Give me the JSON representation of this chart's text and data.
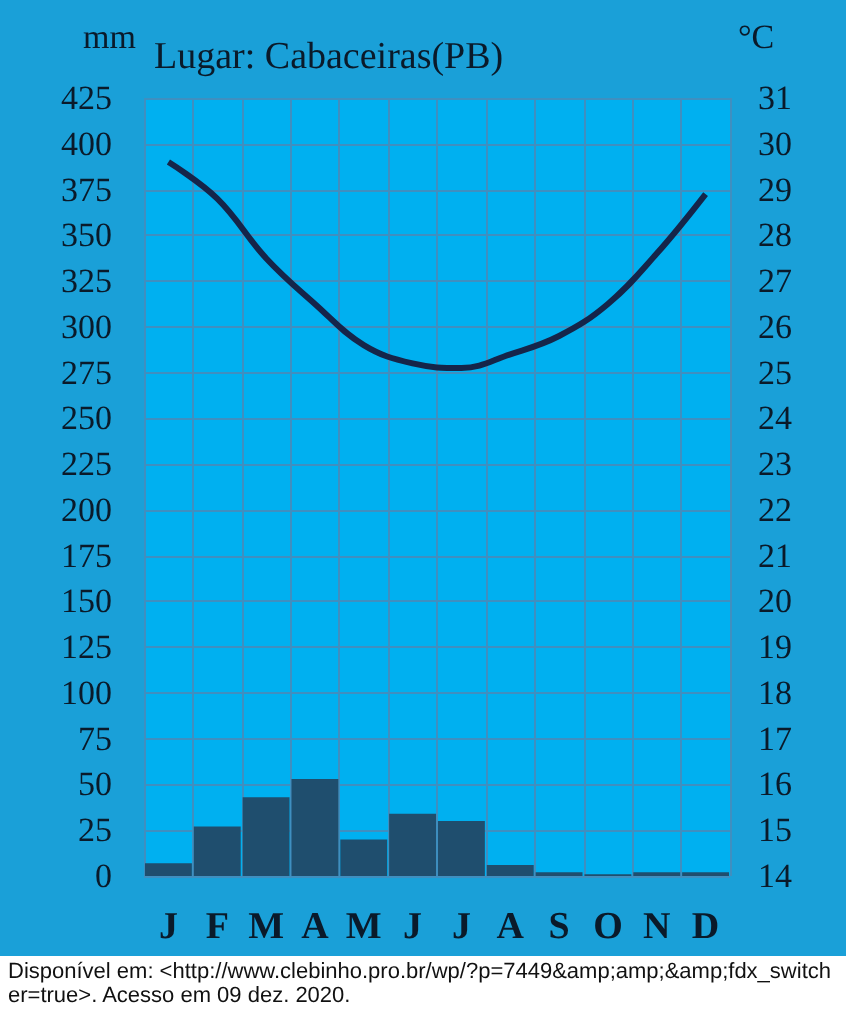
{
  "chart_data": {
    "type": "bar",
    "title": "Lugar: Cabaceiras(PB)",
    "ylabel": "mm",
    "y2label": "°C",
    "categories": [
      "J",
      "F",
      "M",
      "A",
      "M",
      "J",
      "J",
      "A",
      "S",
      "O",
      "N",
      "D"
    ],
    "series": [
      {
        "color": "#1f4e6e",
        "values": [
          7,
          27,
          43,
          53,
          20,
          34,
          30,
          6,
          2,
          1,
          2,
          2
        ]
      },
      {
        "type": "line",
        "axis": "y2",
        "color": "#15254a",
        "values": [
          29.6,
          28.8,
          27.5,
          26.5,
          25.6,
          25.2,
          25.1,
          25.4,
          25.8,
          26.5,
          27.6,
          28.9
        ]
      }
    ],
    "ylim": [
      0,
      425
    ],
    "yticks": [
      0,
      25,
      50,
      75,
      100,
      125,
      150,
      175,
      200,
      225,
      250,
      275,
      300,
      325,
      350,
      375,
      400,
      425
    ],
    "y2lim": [
      14,
      31
    ],
    "y2ticks": [
      14,
      15,
      16,
      17,
      18,
      19,
      20,
      21,
      22,
      23,
      24,
      25,
      26,
      27,
      28,
      29,
      30,
      31
    ],
    "grid": true,
    "marker": "none",
    "annotations": [
      "Disponível em: <http://www.clebinho.pro.br/wp/?p=7449&amp;amp;&amp;fdx_switcher=true>. Acesso em 09 dez. 2020."
    ]
  }
}
